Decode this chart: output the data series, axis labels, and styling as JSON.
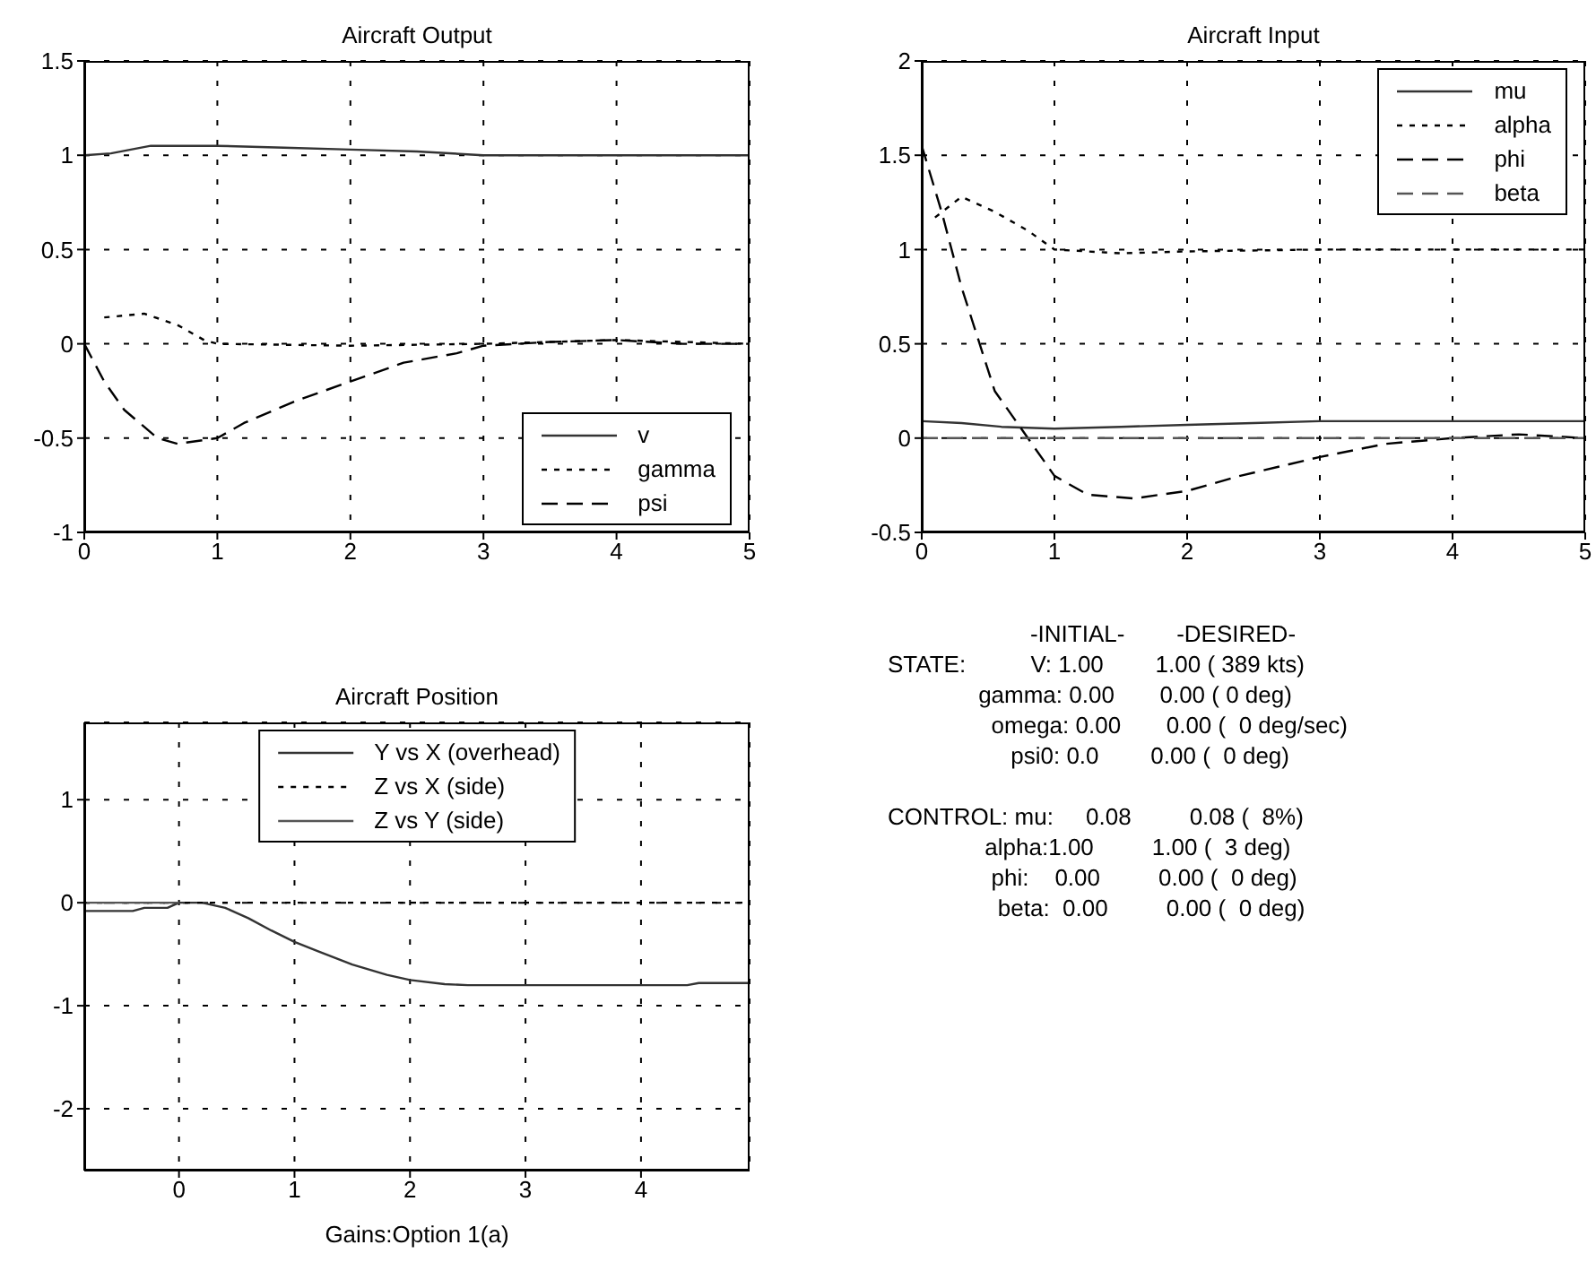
{
  "chart_data": [
    {
      "type": "line",
      "title": "Aircraft Output",
      "xlim": [
        0,
        5
      ],
      "xticks": [
        0,
        1,
        2,
        3,
        4,
        5
      ],
      "ylim": [
        -1,
        1.5
      ],
      "yticks": [
        -1,
        -0.5,
        0,
        0.5,
        1,
        1.5
      ],
      "grid": true,
      "legend": "bottom right",
      "marker": "none",
      "series": [
        {
          "name": "v",
          "color": "#333333",
          "line_style": "solid",
          "x": [
            0,
            0.2,
            0.5,
            1,
            1.5,
            2,
            2.5,
            3,
            4,
            5
          ],
          "values": [
            1,
            1.01,
            1.05,
            1.05,
            1.04,
            1.03,
            1.02,
            1,
            1,
            1
          ]
        },
        {
          "name": "gamma",
          "color": "#000000",
          "line_style": "dotted",
          "x": [
            0.15,
            0.45,
            0.7,
            0.9,
            1,
            2,
            3,
            4,
            5
          ],
          "values": [
            0.14,
            0.16,
            0.1,
            0.02,
            0,
            -0.01,
            0,
            0.02,
            0
          ]
        },
        {
          "name": "psi",
          "color": "#000000",
          "line_style": "dashed",
          "x": [
            0,
            0.15,
            0.3,
            0.55,
            0.7,
            1,
            1.2,
            1.6,
            2,
            2.4,
            2.8,
            3,
            3.5,
            4,
            4.5,
            5
          ],
          "values": [
            0,
            -0.2,
            -0.35,
            -0.5,
            -0.53,
            -0.5,
            -0.42,
            -0.3,
            -0.2,
            -0.1,
            -0.05,
            -0.01,
            0.01,
            0.02,
            0,
            0
          ]
        }
      ]
    },
    {
      "type": "line",
      "title": "Aircraft Input",
      "xlim": [
        0,
        5
      ],
      "xticks": [
        0,
        1,
        2,
        3,
        4,
        5
      ],
      "ylim": [
        -0.5,
        2
      ],
      "yticks": [
        -0.5,
        0,
        0.5,
        1,
        1.5,
        2
      ],
      "grid": true,
      "legend": "top right",
      "marker": "none",
      "series": [
        {
          "name": "mu",
          "color": "#333333",
          "line_style": "solid",
          "x": [
            0,
            0.3,
            0.6,
            1,
            1.5,
            2,
            2.5,
            3,
            5
          ],
          "values": [
            0.09,
            0.08,
            0.06,
            0.05,
            0.06,
            0.07,
            0.08,
            0.09,
            0.09
          ]
        },
        {
          "name": "alpha",
          "color": "#000000",
          "line_style": "dotted",
          "x": [
            0.1,
            0.3,
            0.55,
            0.8,
            1,
            1.5,
            2,
            3,
            5
          ],
          "values": [
            1.17,
            1.28,
            1.2,
            1.1,
            1,
            0.98,
            0.99,
            1,
            1
          ]
        },
        {
          "name": "phi",
          "color": "#000000",
          "line_style": "dashed",
          "x": [
            0,
            0.15,
            0.3,
            0.55,
            0.8,
            1,
            1.25,
            1.6,
            2,
            2.4,
            3,
            3.5,
            4,
            4.5,
            5
          ],
          "values": [
            1.55,
            1.2,
            0.8,
            0.25,
            0,
            -0.2,
            -0.3,
            -0.32,
            -0.28,
            -0.2,
            -0.1,
            -0.03,
            0,
            0.02,
            0
          ]
        },
        {
          "name": "beta",
          "color": "#555555",
          "line_style": "dashed",
          "x": [
            0,
            5
          ],
          "values": [
            0,
            0
          ]
        }
      ]
    },
    {
      "type": "line",
      "title": "Aircraft Position",
      "xlabel": "Gains:Option 1(a)",
      "xlim": [
        -0.82,
        4.94
      ],
      "xticks": [
        0,
        1,
        2,
        3,
        4
      ],
      "ylim": [
        -2.6,
        1.75
      ],
      "yticks": [
        -2,
        -1,
        0,
        1
      ],
      "grid": true,
      "legend": "top",
      "marker": "none",
      "series": [
        {
          "name": "Y vs X (overhead)",
          "color": "#333333",
          "line_style": "solid",
          "x": [
            -0.82,
            -0.4,
            -0.3,
            -0.1,
            0,
            0.2,
            0.4,
            0.6,
            0.8,
            1,
            1.2,
            1.5,
            1.8,
            2,
            2.3,
            2.5,
            4.4,
            4.5,
            4.94
          ],
          "values": [
            -0.08,
            -0.08,
            -0.05,
            -0.05,
            0,
            0,
            -0.05,
            -0.15,
            -0.27,
            -0.38,
            -0.47,
            -0.6,
            -0.7,
            -0.75,
            -0.79,
            -0.8,
            -0.8,
            -0.78,
            -0.78
          ]
        },
        {
          "name": "Z vs X (side)",
          "color": "#000000",
          "line_style": "dotted",
          "x": [
            -0.82,
            4.94
          ],
          "values": [
            0,
            0
          ]
        },
        {
          "name": "Z vs Y (side)",
          "color": "#555555",
          "line_style": "solid",
          "x": [
            -0.8,
            0
          ],
          "values": [
            0,
            0
          ]
        }
      ]
    },
    {
      "type": "other",
      "annotations": [
        "                      -INITIAL-        -DESIRED-",
        "STATE:          V: 1.00        1.00 ( 389 kts)",
        "              gamma: 0.00       0.00 ( 0 deg)",
        "                omega: 0.00       0.00 (  0 deg/sec)",
        "                   psi0: 0.0        0.00 (  0 deg)",
        "CONTROL: mu:     0.08         0.08 (  8%)",
        "               alpha:1.00         1.00 (  3 deg)",
        "                phi:    0.00         0.00 (  0 deg)",
        "                 beta:  0.00         0.00 (  0 deg)"
      ]
    }
  ]
}
